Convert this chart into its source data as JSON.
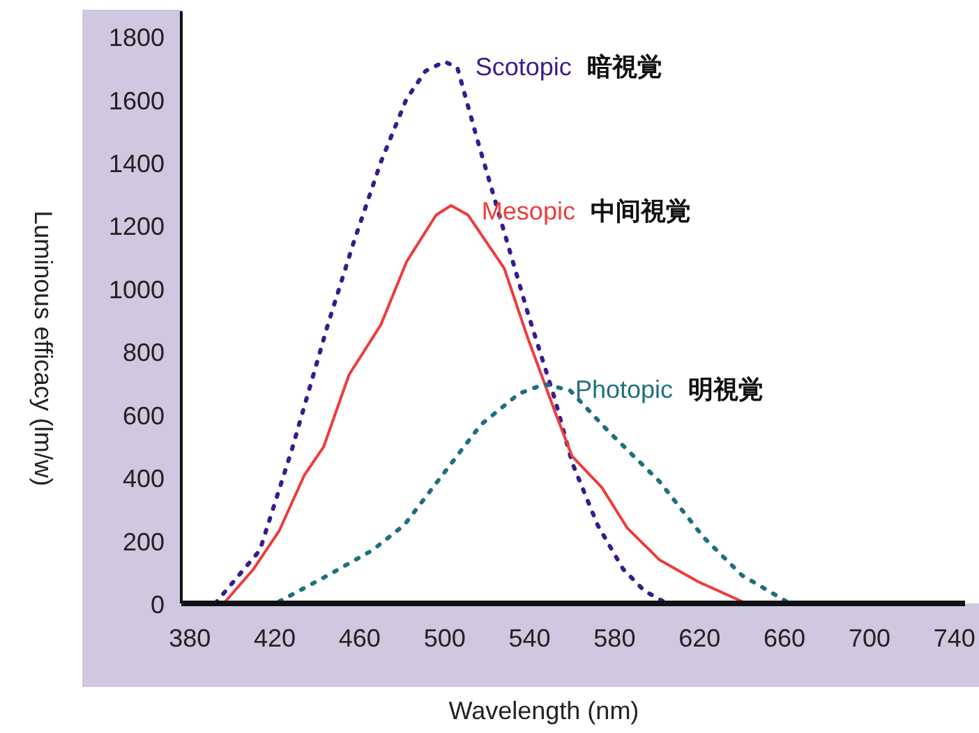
{
  "chart_data": {
    "type": "line",
    "xlabel": "Wavelength (nm)",
    "ylabel": "Luminous efficacy (lm/w)",
    "xlim": [
      376,
      745
    ],
    "ylim": [
      0,
      1880
    ],
    "xticks": [
      380,
      420,
      460,
      500,
      540,
      580,
      620,
      660,
      700,
      740
    ],
    "yticks": [
      0,
      200,
      400,
      600,
      800,
      1000,
      1200,
      1400,
      1600,
      1800
    ],
    "grid": false,
    "series": [
      {
        "name": "Scotopic 暗視覚",
        "color": "#3a1a8c",
        "line_style": "dotted",
        "x": [
          392,
          413,
          428,
          445,
          457,
          470,
          482,
          491,
          500,
          506,
          515,
          527,
          539,
          552,
          560,
          572,
          584,
          594,
          603,
          607
        ],
        "values": [
          0,
          169,
          487,
          885,
          1143,
          1402,
          1601,
          1690,
          1720,
          1700,
          1481,
          1203,
          925,
          646,
          447,
          249,
          109,
          40,
          6,
          0
        ]
      },
      {
        "name": "Mesopic 中间視覚",
        "color": "#ee3b3b",
        "line_style": "solid",
        "x": [
          396,
          410,
          422,
          434,
          443,
          455,
          470,
          482,
          496,
          503,
          511,
          528,
          539,
          552,
          560,
          574,
          586,
          601,
          619,
          640,
          642
        ],
        "values": [
          0,
          109,
          229,
          408,
          497,
          726,
          885,
          1084,
          1233,
          1263,
          1233,
          1064,
          845,
          607,
          467,
          368,
          239,
          139,
          70,
          6,
          0
        ]
      },
      {
        "name": "Photopic 明視覚",
        "color": "#1f6f80",
        "line_style": "dotted",
        "x": [
          422,
          445,
          466,
          481,
          499,
          517,
          535,
          547,
          559,
          577,
          601,
          622,
          640,
          661,
          662
        ],
        "values": [
          6,
          89,
          169,
          249,
          408,
          567,
          666,
          696,
          676,
          547,
          388,
          209,
          89,
          6,
          0
        ]
      }
    ]
  }
}
